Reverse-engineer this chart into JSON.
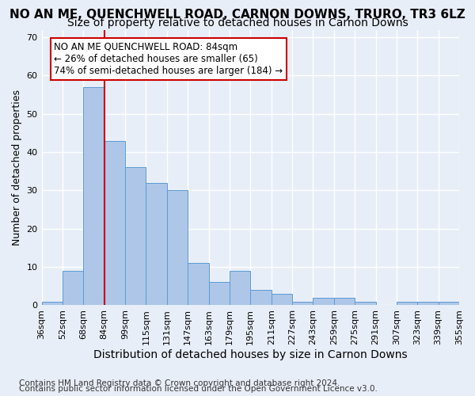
{
  "title": "NO AN ME, QUENCHWELL ROAD, CARNON DOWNS, TRURO, TR3 6LZ",
  "subtitle": "Size of property relative to detached houses in Carnon Downs",
  "xlabel": "Distribution of detached houses by size in Carnon Downs",
  "ylabel": "Number of detached properties",
  "footnote1": "Contains HM Land Registry data © Crown copyright and database right 2024.",
  "footnote2": "Contains public sector information licensed under the Open Government Licence v3.0.",
  "bin_labels": [
    "36sqm",
    "52sqm",
    "68sqm",
    "84sqm",
    "99sqm",
    "115sqm",
    "131sqm",
    "147sqm",
    "163sqm",
    "179sqm",
    "195sqm",
    "211sqm",
    "227sqm",
    "243sqm",
    "259sqm",
    "275sqm",
    "291sqm",
    "307sqm",
    "323sqm",
    "339sqm",
    "355sqm"
  ],
  "values": [
    1,
    9,
    57,
    43,
    36,
    32,
    30,
    11,
    6,
    9,
    4,
    3,
    1,
    2,
    2,
    1,
    0,
    1,
    1,
    1
  ],
  "bar_color": "#aec6e8",
  "bar_edge_color": "#5b9bd5",
  "marker_line_color": "#cc0000",
  "annotation_text": "NO AN ME QUENCHWELL ROAD: 84sqm\n← 26% of detached houses are smaller (65)\n74% of semi-detached houses are larger (184) →",
  "annotation_box_color": "white",
  "annotation_box_edge": "#cc0000",
  "ylim": [
    0,
    72
  ],
  "yticks": [
    0,
    10,
    20,
    30,
    40,
    50,
    60,
    70
  ],
  "background_color": "#e8eef7",
  "grid_color": "white",
  "title_fontsize": 11,
  "subtitle_fontsize": 10,
  "xlabel_fontsize": 10,
  "ylabel_fontsize": 9,
  "tick_fontsize": 8,
  "annot_fontsize": 8.5,
  "footnote_fontsize": 7.5
}
